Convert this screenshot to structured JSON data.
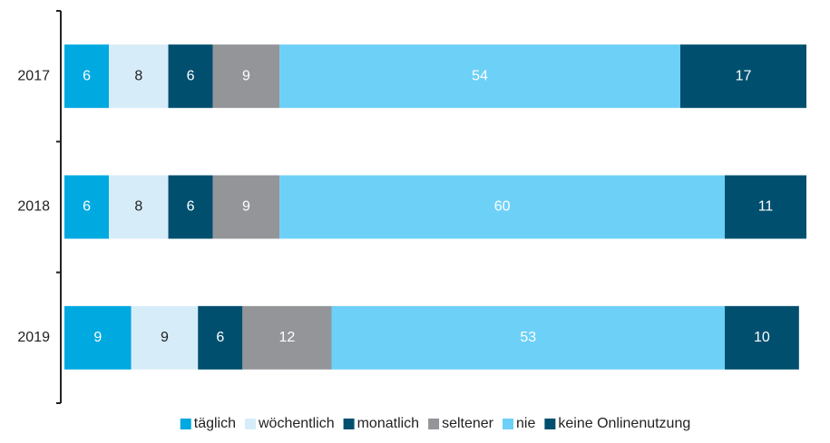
{
  "chart_data": {
    "type": "stacked-barh",
    "categories": [
      "2017",
      "2018",
      "2019"
    ],
    "xlim": [
      0,
      100
    ],
    "series": [
      {
        "name": "täglich",
        "color": "#00a9e0",
        "values": [
          6,
          6,
          9
        ]
      },
      {
        "name": "wöchentlich",
        "color": "#d7ecf9",
        "values": [
          8,
          8,
          9
        ]
      },
      {
        "name": "monatlich",
        "color": "#004f6f",
        "values": [
          6,
          6,
          6
        ]
      },
      {
        "name": "seltener",
        "color": "#939598",
        "values": [
          9,
          9,
          12
        ]
      },
      {
        "name": "nie",
        "color": "#6dd0f7",
        "values": [
          54,
          60,
          53
        ]
      },
      {
        "name": "keine Onlinenutzung",
        "color": "#004f6f",
        "values": [
          17,
          11,
          10
        ]
      }
    ],
    "legend": "bottom"
  }
}
